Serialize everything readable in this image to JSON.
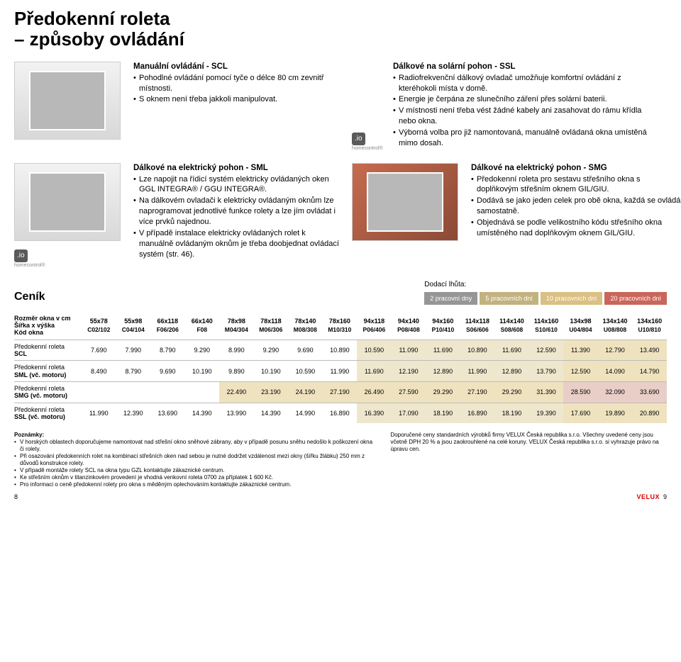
{
  "page": {
    "title_line1": "Předokenní roleta",
    "title_line2": "– způsoby ovládání",
    "left_page_no": "8",
    "right_page_no": "9",
    "brand": "VELUX"
  },
  "sections": {
    "scl": {
      "title": "Manuální ovládání - SCL",
      "b1": "Pohodlné ovládání pomocí tyče o délce 80 cm zevnitř místnosti.",
      "b2": "S oknem není třeba jakkoli manipulovat."
    },
    "ssl": {
      "title": "Dálkové na solární pohon - SSL",
      "b1": "Radiofrekvenční dálkový ovladač umožňuje komfortní ovládání z kteréhokoli místa v domě.",
      "b2": "Energie je čerpána ze slunečního záření přes solární baterii.",
      "b3": "V místnosti není třeba vést žádné kabely ani zasahovat do rámu křídla nebo okna.",
      "b4": "Výborná volba pro již namontovaná, manuálně ovládaná okna umístěná mimo dosah."
    },
    "sml": {
      "title": "Dálkové na elektrický pohon - SML",
      "b1": "Lze napojit na řídicí systém elektricky ovládaných oken GGL INTEGRA® / GGU INTEGRA®.",
      "b2": "Na dálkovém ovladači k elektricky ovládaným oknům lze naprogramovat jednotlivé funkce rolety a lze jím ovládat i více prvků najednou.",
      "b3": "V případě instalace elektricky ovládaných rolet k manuálně ovládaným oknům je třeba doobjednat ovládací systém (str. 46)."
    },
    "smg": {
      "title": "Dálkové na elektrický pohon - SMG",
      "b1": "Předokenní roleta pro sestavu střešního okna s doplňkovým střešním oknem GIL/GIU.",
      "b2": "Dodává se jako jeden celek pro obě okna, každá se ovládá samostatně.",
      "b3": "Objednává se podle velikostního kódu střešního okna umístěného nad doplňkovým oknem GIL/GIU."
    }
  },
  "io": {
    "badge": ".io",
    "label": "homecontrol®"
  },
  "cenik": {
    "label": "Ceník",
    "delivery_title": "Dodací lhůta:",
    "delivery": [
      {
        "text": "2 pracovní dny",
        "bg": "#969696"
      },
      {
        "text": "5 pracovních dní",
        "bg": "#c2b280"
      },
      {
        "text": "10 pracovních dní",
        "bg": "#dac082"
      },
      {
        "text": "20 pracovních dní",
        "bg": "#c9655a"
      }
    ]
  },
  "table": {
    "rowhead_l1": "Rozměr okna v cm",
    "rowhead_l2": "Šířka x výška",
    "rowhead_l3": "Kód okna",
    "dims": [
      "55x78",
      "55x98",
      "66x118",
      "66x140",
      "78x98",
      "78x118",
      "78x140",
      "78x160",
      "94x118",
      "94x140",
      "94x160",
      "114x118",
      "114x140",
      "114x160",
      "134x98",
      "134x140",
      "134x160"
    ],
    "codes": [
      "C02/102",
      "C04/104",
      "F06/206",
      "F08",
      "M04/304",
      "M06/306",
      "M08/308",
      "M10/310",
      "P06/406",
      "P08/408",
      "P10/410",
      "S06/606",
      "S08/608",
      "S10/610",
      "U04/804",
      "U08/808",
      "U10/810"
    ],
    "rows": [
      {
        "label": "Předokenní roleta\nSCL",
        "labelStrong": "SCL",
        "shades": [
          0,
          0,
          0,
          0,
          0,
          0,
          0,
          0,
          1,
          1,
          1,
          1,
          1,
          1,
          2,
          2,
          2
        ],
        "values": [
          "7.690",
          "7.990",
          "8.790",
          "9.290",
          "8.990",
          "9.290",
          "9.690",
          "10.890",
          "10.590",
          "11.090",
          "11.690",
          "10.890",
          "11.690",
          "12.590",
          "11.390",
          "12.790",
          "13.490"
        ]
      },
      {
        "label": "Předokenní roleta\nSML (vč. motoru)",
        "labelStrong": "SML",
        "shades": [
          0,
          0,
          0,
          0,
          0,
          0,
          0,
          0,
          1,
          1,
          1,
          1,
          1,
          1,
          2,
          2,
          2
        ],
        "values": [
          "8.490",
          "8.790",
          "9.690",
          "10.190",
          "9.890",
          "10.190",
          "10.590",
          "11.990",
          "11.690",
          "12.190",
          "12.890",
          "11.990",
          "12.890",
          "13.790",
          "12.590",
          "14.090",
          "14.790"
        ]
      },
      {
        "label": "Předokenní roleta\nSMG (vč. motoru)",
        "labelStrong": "SMG",
        "shades": [
          0,
          0,
          0,
          0,
          2,
          2,
          2,
          2,
          2,
          2,
          2,
          2,
          2,
          2,
          3,
          3,
          3
        ],
        "values": [
          "",
          "",
          "",
          "",
          "22.490",
          "23.190",
          "24.190",
          "27.190",
          "26.490",
          "27.590",
          "29.290",
          "27.190",
          "29.290",
          "31.390",
          "28.590",
          "32.090",
          "33.690"
        ]
      },
      {
        "label": "Předokenní roleta\nSSL (vč. motoru)",
        "labelStrong": "SSL",
        "shades": [
          0,
          0,
          0,
          0,
          0,
          0,
          0,
          0,
          1,
          1,
          1,
          1,
          1,
          1,
          2,
          2,
          2
        ],
        "values": [
          "11.990",
          "12.390",
          "13.690",
          "14.390",
          "13.990",
          "14.390",
          "14.990",
          "16.890",
          "16.390",
          "17.090",
          "18.190",
          "16.890",
          "18.190",
          "19.390",
          "17.690",
          "19.890",
          "20.890"
        ]
      }
    ],
    "shade_colors": [
      "#ffffff",
      "#efe7cd",
      "#efe3bf",
      "#e9cec7"
    ]
  },
  "notes": {
    "heading": "Poznámky:",
    "n1": "V horských oblastech doporučujeme namontovat nad střešní okno sněhové zábrany, aby v případě posunu sněhu nedošlo k poškození okna či rolety.",
    "n2": "Při osazování předokenních rolet na kombinaci střešních oken nad sebou je nutné dodržet vzdálenost mezi okny (šířku žlábku) 250 mm z důvodů konstrukce rolety.",
    "n3": "V případě montáže rolety SCL na okna typu GZL kontaktujte zákaznické centrum.",
    "n4": "Ke střešním oknům v titanzinkovém provedení je vhodná venkovní roleta 0700 za příplatek 1 600 Kč.",
    "n5": "Pro informaci o ceně předokenní rolety pro okna s měděným oplechováním kontaktujte zákaznické centrum.",
    "right": "Doporučené ceny standardních výrobků firmy VELUX Česká republika s.r.o. Všechny uvedené ceny jsou včetně DPH 20 % a jsou zaokrouhlené na celé koruny. VELUX Česká republika s.r.o. si vyhrazuje právo na úpravu cen."
  }
}
